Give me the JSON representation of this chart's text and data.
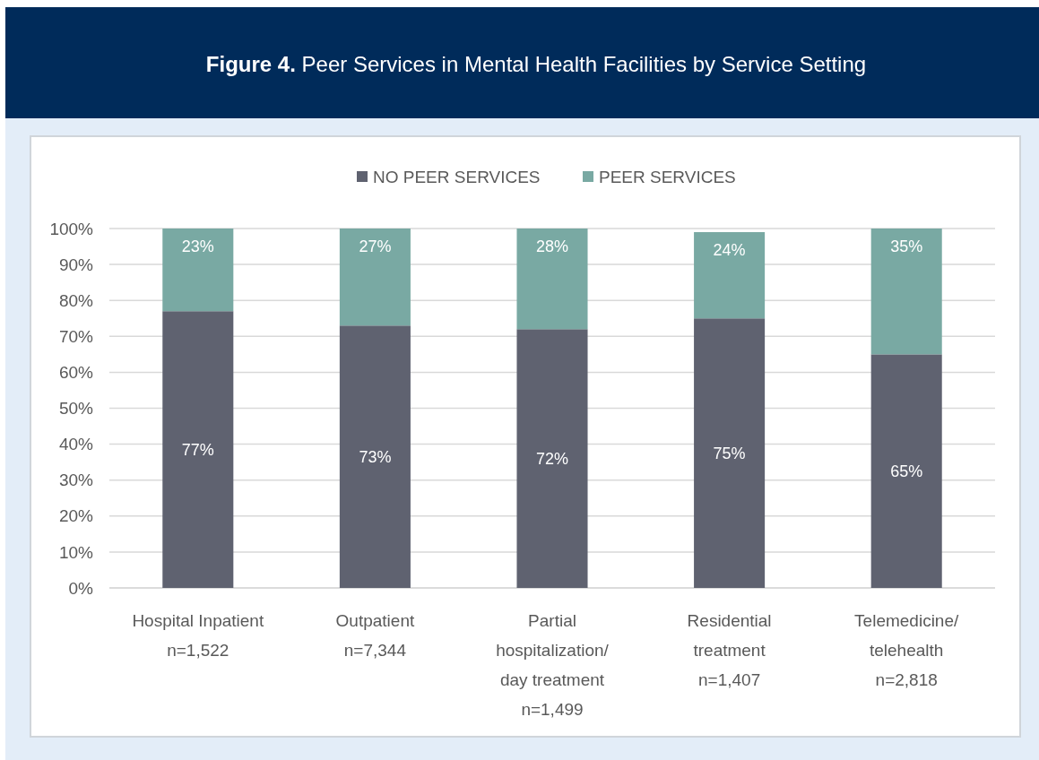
{
  "chart_data": {
    "type": "bar",
    "title": "Figure 4. Peer Services in Mental Health Facilities by Service Setting",
    "categories": [
      "Hospital Inpatient\nn=1,522",
      "Outpatient\nn=7,344",
      "Partial\nhospitalization/\nday treatment\nn=1,499",
      "Residential\ntreatment\nn=1,407",
      "Telemedicine/\ntelehealth\nn=2,818"
    ],
    "series": [
      {
        "name": "NO PEER SERVICES",
        "color": "#5f6270",
        "values": [
          77,
          73,
          72,
          75,
          65
        ],
        "value_labels": [
          "77%",
          "73%",
          "72%",
          "75%",
          "65%"
        ]
      },
      {
        "name": "PEER SERVICES",
        "color": "#79a9a3",
        "values": [
          23,
          27,
          28,
          24,
          35
        ],
        "value_labels": [
          "23%",
          "27%",
          "28%",
          "24%",
          "35%"
        ]
      }
    ],
    "stacked": true,
    "ylim": [
      0,
      100
    ],
    "yticks": [
      {
        "value": 0,
        "label": "0%"
      },
      {
        "value": 10,
        "label": "10%"
      },
      {
        "value": 20,
        "label": "20%"
      },
      {
        "value": 30,
        "label": "30%"
      },
      {
        "value": 40,
        "label": "40%"
      },
      {
        "value": 50,
        "label": "50%"
      },
      {
        "value": 60,
        "label": "60%"
      },
      {
        "value": 70,
        "label": "70%"
      },
      {
        "value": 80,
        "label": "80%"
      },
      {
        "value": 90,
        "label": "90%"
      },
      {
        "value": 100,
        "label": "100%"
      }
    ],
    "grid": "y",
    "legend": "top"
  }
}
